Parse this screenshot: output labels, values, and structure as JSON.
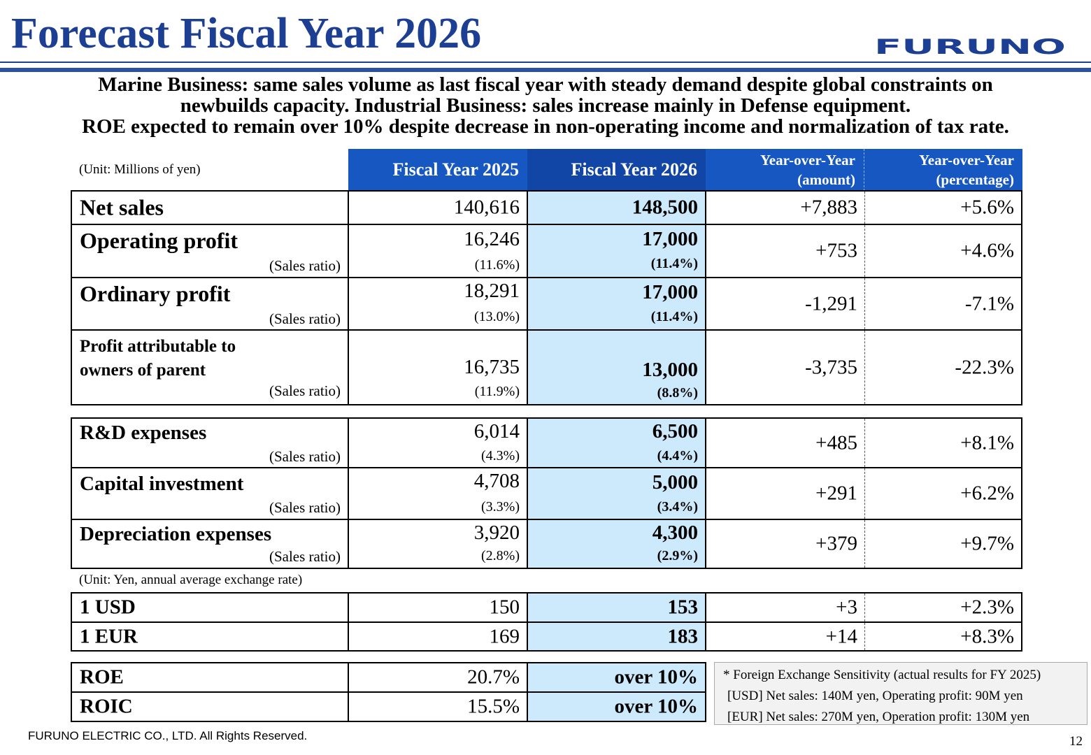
{
  "title": "Forecast Fiscal Year 2026",
  "logo_text": "FURUNO",
  "subtitle": [
    "Marine Business: same sales volume as last fiscal year with steady demand despite global constraints on",
    "newbuilds capacity. Industrial Business: sales increase mainly in Defense equipment.",
    "ROE expected to remain over 10% despite decrease in non-operating income and normalization of tax rate."
  ],
  "unit_main": "(Unit: Millions of yen)",
  "unit_fx": "(Unit: Yen, annual average exchange rate)",
  "headers": {
    "fy2025": "Fiscal Year 2025",
    "fy2026": "Fiscal Year 2026",
    "yoy_amount_1": "Year-over-Year",
    "yoy_amount_2": "(amount)",
    "yoy_pct_1": "Year-over-Year",
    "yoy_pct_2": "(percentage)"
  },
  "sales_ratio_label": "(Sales ratio)",
  "rows": {
    "net_sales": {
      "label": "Net sales",
      "fy2025": "140,616",
      "fy2026": "148,500",
      "yoy_amount": "+7,883",
      "yoy_pct": "+5.6%"
    },
    "operating_profit": {
      "label": "Operating profit",
      "fy2025": "16,246",
      "fy2025_ratio": "(11.6%)",
      "fy2026": "17,000",
      "fy2026_ratio": "(11.4%)",
      "yoy_amount": "+753",
      "yoy_pct": "+4.6%"
    },
    "ordinary_profit": {
      "label": "Ordinary profit",
      "fy2025": "18,291",
      "fy2025_ratio": "(13.0%)",
      "fy2026": "17,000",
      "fy2026_ratio": "(11.4%)",
      "yoy_amount": "-1,291",
      "yoy_pct": "-7.1%"
    },
    "profit_parent": {
      "label_1": "Profit attributable to",
      "label_2": "owners of parent",
      "fy2025": "16,735",
      "fy2025_ratio": "(11.9%)",
      "fy2026": "13,000",
      "fy2026_ratio": "(8.8%)",
      "yoy_amount": "-3,735",
      "yoy_pct": "-22.3%"
    },
    "rd": {
      "label": "R&D expenses",
      "fy2025": "6,014",
      "fy2025_ratio": "(4.3%)",
      "fy2026": "6,500",
      "fy2026_ratio": "(4.4%)",
      "yoy_amount": "+485",
      "yoy_pct": "+8.1%"
    },
    "capex": {
      "label": "Capital investment",
      "fy2025": "4,708",
      "fy2025_ratio": "(3.3%)",
      "fy2026": "5,000",
      "fy2026_ratio": "(3.4%)",
      "yoy_amount": "+291",
      "yoy_pct": "+6.2%"
    },
    "depreciation": {
      "label": "Depreciation expenses",
      "fy2025": "3,920",
      "fy2025_ratio": "(2.8%)",
      "fy2026": "4,300",
      "fy2026_ratio": "(2.9%)",
      "yoy_amount": "+379",
      "yoy_pct": "+9.7%"
    },
    "usd": {
      "label": "1 USD",
      "fy2025": "150",
      "fy2026": "153",
      "yoy_amount": "+3",
      "yoy_pct": "+2.3%"
    },
    "eur": {
      "label": "1 EUR",
      "fy2025": "169",
      "fy2026": "183",
      "yoy_amount": "+14",
      "yoy_pct": "+8.3%"
    },
    "roe": {
      "label": "ROE",
      "fy2025": "20.7%",
      "fy2026": "over 10%"
    },
    "roic": {
      "label": "ROIC",
      "fy2025": "15.5%",
      "fy2026": "over 10%"
    }
  },
  "fx_note": [
    "* Foreign Exchange Sensitivity (actual results for FY 2025)",
    "[USD] Net sales: 140M yen, Operating profit:   90M yen",
    "[EUR] Net sales: 270M yen, Operation profit: 130M yen"
  ],
  "footer": "FURUNO ELECTRIC CO., LTD. All Rights Reserved.",
  "page_number": "12"
}
